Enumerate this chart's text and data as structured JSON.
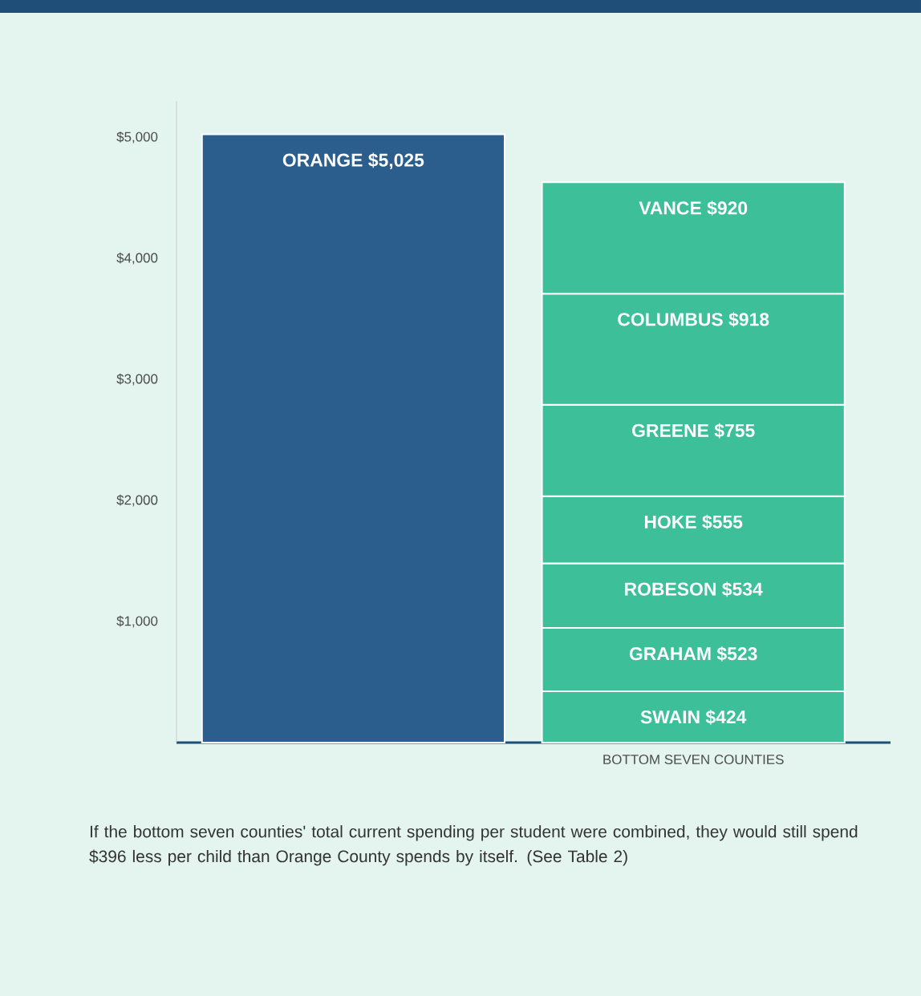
{
  "chart_data": {
    "type": "bar",
    "stacked": true,
    "categories": [
      null,
      "BOTTOM SEVEN COUNTIES"
    ],
    "series": [
      {
        "name": "ORANGE",
        "color": "#2b5e8c",
        "values": [
          5025,
          null
        ],
        "value_labels": [
          "$5,025",
          null
        ]
      },
      {
        "name": "SWAIN",
        "color": "#3dbf9a",
        "values": [
          null,
          424
        ],
        "value_labels": [
          null,
          "$424"
        ]
      },
      {
        "name": "GRAHAM",
        "color": "#3dbf9a",
        "values": [
          null,
          523
        ],
        "value_labels": [
          null,
          "$523"
        ]
      },
      {
        "name": "ROBESON",
        "color": "#3dbf9a",
        "values": [
          null,
          534
        ],
        "value_labels": [
          null,
          "$534"
        ]
      },
      {
        "name": "HOKE",
        "color": "#3dbf9a",
        "values": [
          null,
          555
        ],
        "value_labels": [
          null,
          "$555"
        ]
      },
      {
        "name": "GREENE",
        "color": "#3dbf9a",
        "values": [
          null,
          755
        ],
        "value_labels": [
          null,
          "$755"
        ]
      },
      {
        "name": "COLUMBUS",
        "color": "#3dbf9a",
        "values": [
          null,
          918
        ],
        "value_labels": [
          null,
          "$918"
        ]
      },
      {
        "name": "VANCE",
        "color": "#3dbf9a",
        "values": [
          null,
          920
        ],
        "value_labels": [
          null,
          "$920"
        ]
      }
    ],
    "ylim": [
      0,
      5300
    ],
    "yticks": [
      {
        "value": 1000,
        "label": "$1,000"
      },
      {
        "value": 2000,
        "label": "$2,000"
      },
      {
        "value": 3000,
        "label": "$3,000"
      },
      {
        "value": 4000,
        "label": "$4,000"
      },
      {
        "value": 5000,
        "label": "$5,000"
      }
    ],
    "annotations": [
      "If the bottom seven counties' total current spending per student were combined, they would still spend $396 less per child than Orange County spends by itself. (See Table 2)"
    ]
  }
}
